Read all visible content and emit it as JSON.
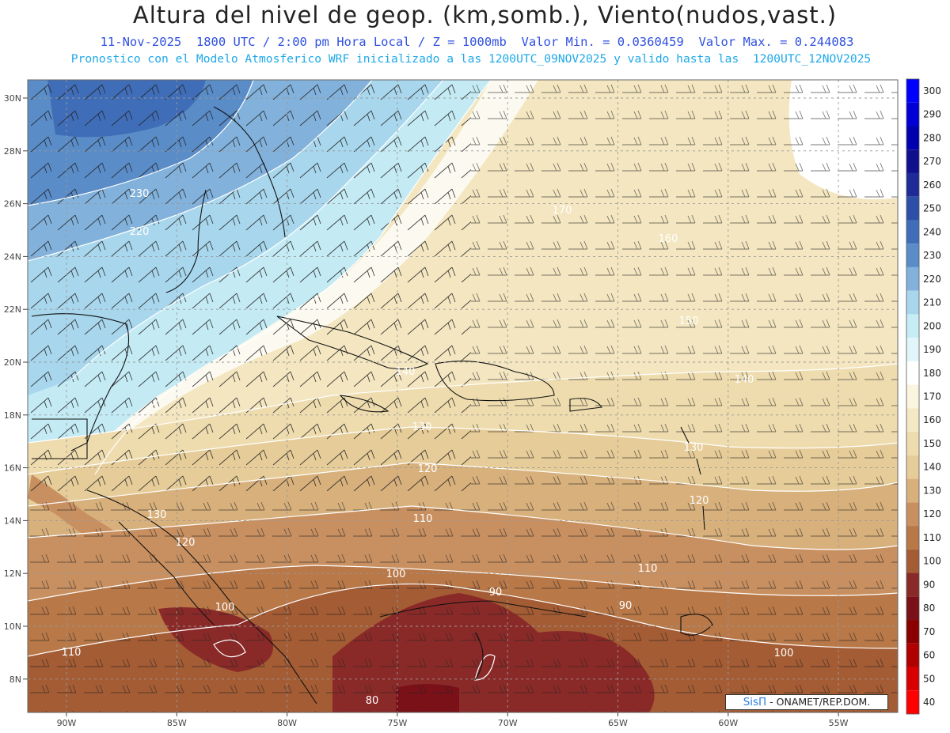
{
  "header": {
    "title": "Altura del nivel de geop. (km,somb.), Viento(nudos,vast.)",
    "subtitle1": "11-Nov-2025  1800 UTC / 2:00 pm Hora Local / Z = 1000mb  Valor Min. = 0.0360459  Valor Max. = 0.244083",
    "subtitle2": "Pronostico con el Modelo Atmosferico WRF inicializado a las 1200UTC_09NOV2025 y valido hasta las  1200UTC_12NOV2025"
  },
  "map": {
    "lon_labels": [
      "90W",
      "85W",
      "80W",
      "75W",
      "70W",
      "65W",
      "60W",
      "55W"
    ],
    "lat_labels": [
      "30N",
      "28N",
      "26N",
      "24N",
      "22N",
      "20N",
      "18N",
      "16N",
      "14N",
      "12N",
      "10N",
      "8N"
    ],
    "contour_labels": [
      "230",
      "220",
      "170",
      "160",
      "150",
      "140",
      "140",
      "130",
      "130",
      "120",
      "120",
      "130",
      "120",
      "110",
      "110",
      "100",
      "100",
      "90",
      "90",
      "100",
      "110",
      "80"
    ]
  },
  "colorbar": {
    "levels": [
      "300",
      "290",
      "280",
      "270",
      "260",
      "250",
      "240",
      "230",
      "220",
      "210",
      "200",
      "190",
      "180",
      "170",
      "160",
      "150",
      "140",
      "130",
      "120",
      "110",
      "100",
      "90",
      "80",
      "70",
      "60",
      "50",
      "40"
    ],
    "colors": [
      "#0000ff",
      "#0000d6",
      "#0000b0",
      "#10108f",
      "#1e2a98",
      "#2e4fa8",
      "#3f6db8",
      "#5a8cc8",
      "#82b2dc",
      "#a8d6ec",
      "#c6ecf5",
      "#e0f6fa",
      "#ffffff",
      "#fbf4de",
      "#f4e9c4",
      "#eedcae",
      "#e6cc98",
      "#d8b07c",
      "#c89060",
      "#b87848",
      "#a45c34",
      "#8a2a28",
      "#7a1018",
      "#8a0000",
      "#b00000",
      "#d80000",
      "#ff0000"
    ]
  },
  "credit": {
    "brand": "SisΠ",
    "text": " - ONAMET/REP.DOM."
  }
}
